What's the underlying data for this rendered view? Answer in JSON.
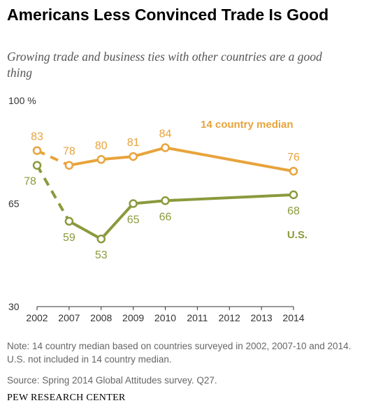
{
  "title": "Americans Less Convinced Trade Is Good",
  "subtitle": "Growing trade and business ties with other countries are a good thing",
  "note": "Note: 14 country median based on countries surveyed in 2002, 2007-10 and 2014. U.S. not included in 14 country median.",
  "source": "Source: Spring 2014 Global Attitudes survey. Q27.",
  "brand": "PEW RESEARCH CENTER",
  "chart_data": {
    "type": "line",
    "x": [
      2002,
      2007,
      2008,
      2009,
      2010,
      2011,
      2012,
      2013,
      2014
    ],
    "x_tick_labels": [
      "2002",
      "2007",
      "2008",
      "2009",
      "2010",
      "2011",
      "2012",
      "2013",
      "2014"
    ],
    "y_ticks": [
      {
        "value": 100,
        "label": "100 %"
      },
      {
        "value": 65,
        "label": "65"
      },
      {
        "value": 30,
        "label": "30"
      }
    ],
    "ylim": [
      30,
      100
    ],
    "grid": false,
    "series": [
      {
        "name": "14 country median",
        "color": "#E8A33B",
        "points": [
          {
            "x": 2002,
            "y": 83
          },
          {
            "x": 2007,
            "y": 78
          },
          {
            "x": 2008,
            "y": 80
          },
          {
            "x": 2009,
            "y": 81
          },
          {
            "x": 2010,
            "y": 84
          },
          {
            "x": 2014,
            "y": 76
          }
        ],
        "dashed_first_segment": true
      },
      {
        "name": "U.S.",
        "color": "#8A9A3C",
        "points": [
          {
            "x": 2002,
            "y": 78
          },
          {
            "x": 2007,
            "y": 59
          },
          {
            "x": 2008,
            "y": 53
          },
          {
            "x": 2009,
            "y": 65
          },
          {
            "x": 2010,
            "y": 66
          },
          {
            "x": 2014,
            "y": 68
          }
        ],
        "dashed_first_segment": true
      }
    ]
  }
}
